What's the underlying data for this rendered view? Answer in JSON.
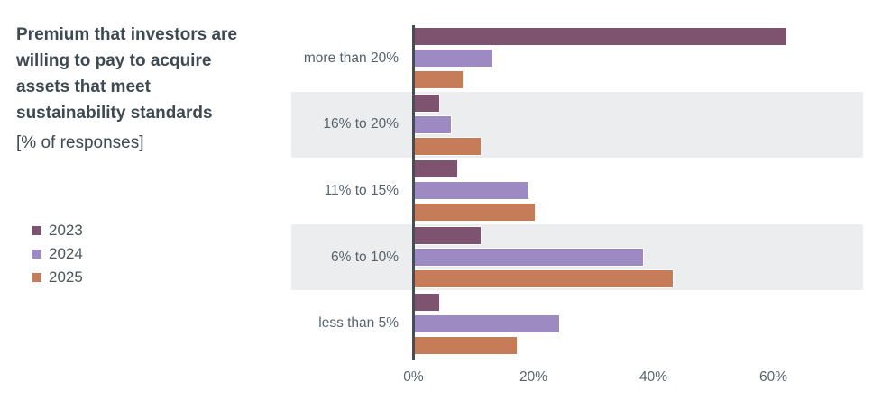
{
  "title": "Premium that investors are willing to pay to acquire assets that meet sustainability standards",
  "title_lines": [
    "Premium that investors are",
    "willing to pay to acquire",
    "assets that meet",
    "sustainability standards"
  ],
  "subtitle": "[% of responses]",
  "legend": {
    "position": "left",
    "items": [
      {
        "label": "2023",
        "color": "#7e5370"
      },
      {
        "label": "2024",
        "color": "#9d8ac2"
      },
      {
        "label": "2025",
        "color": "#c77c59"
      }
    ]
  },
  "chart_data": {
    "type": "bar",
    "orientation": "horizontal",
    "title": "Premium that investors are willing to pay to acquire assets that meet sustainability standards",
    "subtitle": "[% of responses]",
    "categories": [
      "more than 20%",
      "16% to 20%",
      "11% to 15%",
      "6% to 10%",
      "less than 5%"
    ],
    "series": [
      {
        "name": "2023",
        "color": "#7e5370",
        "values": [
          62,
          4,
          7,
          11,
          4
        ]
      },
      {
        "name": "2024",
        "color": "#9d8ac2",
        "values": [
          13,
          6,
          19,
          38,
          24
        ]
      },
      {
        "name": "2025",
        "color": "#c77c59",
        "values": [
          8,
          11,
          20,
          43,
          17
        ]
      }
    ],
    "x_ticks": {
      "values": [
        0,
        20,
        40,
        60
      ],
      "labels": [
        "0%",
        "20%",
        "40%",
        "60%"
      ]
    },
    "xlim": [
      0,
      75
    ],
    "grid": false,
    "shaded_rows": [
      1,
      3
    ],
    "legend_position": "left"
  },
  "colors": {
    "background": "#ffffff",
    "band": "#ecedef",
    "axis": "#434e55",
    "title_text": "#3e4a52",
    "label_text": "#57626a",
    "tick_text": "#5a656c"
  }
}
